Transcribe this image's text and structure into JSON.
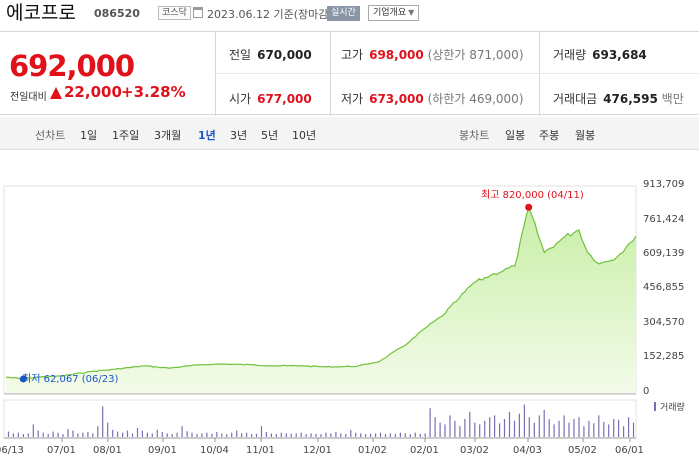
{
  "header": {
    "name": "에코프로",
    "code": "086520",
    "market": "코스닥",
    "date": "2023.06.12",
    "basis": "기준(장마감)",
    "realtime": "실시간",
    "company_info": "기업개요"
  },
  "quote": {
    "price": "692,000",
    "change_label": "전일대비",
    "change": "22,000",
    "change_pct": "+3.28%",
    "prev_label": "전일",
    "prev": "670,000",
    "open_label": "시가",
    "open": "677,000",
    "high_label": "고가",
    "high": "698,000",
    "upper_limit": "(상한가 871,000)",
    "low_label": "저가",
    "low": "673,000",
    "lower_limit": "(하한가 469,000)",
    "volume_label": "거래량",
    "volume": "693,684",
    "amount_label": "거래대금",
    "amount": "476,595",
    "amount_unit": "백만"
  },
  "tabs": {
    "line_header": "선차트",
    "periods": [
      "1일",
      "1주일",
      "3개월",
      "1년",
      "3년",
      "5년",
      "10년"
    ],
    "active_period": "1년",
    "candle_header": "봉차트",
    "candles": [
      "일봉",
      "주봉",
      "월봉"
    ]
  },
  "chart_data": {
    "type": "area",
    "y_ticks": [
      "913,709",
      "761,424",
      "609,139",
      "456,855",
      "304,570",
      "152,285",
      "0"
    ],
    "ylim": [
      0,
      913709
    ],
    "x_ticks": [
      "06/13",
      "07/01",
      "08/01",
      "09/01",
      "10/04",
      "11/01",
      "12/01",
      "01/02",
      "02/01",
      "03/02",
      "04/03",
      "05/02",
      "06/01"
    ],
    "high_annotation": "최고 820,000 (04/11)",
    "low_annotation": "최저 62,067 (06/23)",
    "volume_label": "거래량",
    "color_line": "#6fc23b",
    "color_fill_top": "#c8eea6",
    "color_volume": "#7a6fb5",
    "color_high": "#e0111b",
    "color_low": "#1a56c8",
    "price_series": [
      [
        "06/13",
        70000
      ],
      [
        "06/23",
        62067
      ],
      [
        "07/01",
        70000
      ],
      [
        "07/15",
        75000
      ],
      [
        "08/01",
        95000
      ],
      [
        "08/15",
        105000
      ],
      [
        "09/01",
        120000
      ],
      [
        "09/15",
        110000
      ],
      [
        "10/04",
        125000
      ],
      [
        "10/15",
        128000
      ],
      [
        "11/01",
        125000
      ],
      [
        "11/15",
        120000
      ],
      [
        "12/01",
        120000
      ],
      [
        "12/15",
        115000
      ],
      [
        "01/02",
        118000
      ],
      [
        "01/15",
        140000
      ],
      [
        "02/01",
        225000
      ],
      [
        "02/10",
        285000
      ],
      [
        "02/20",
        340000
      ],
      [
        "03/02",
        420000
      ],
      [
        "03/10",
        485000
      ],
      [
        "03/20",
        520000
      ],
      [
        "04/03",
        560000
      ],
      [
        "04/11",
        820000
      ],
      [
        "04/20",
        620000
      ],
      [
        "04/27",
        660000
      ],
      [
        "05/02",
        690000
      ],
      [
        "05/10",
        720000
      ],
      [
        "05/15",
        620000
      ],
      [
        "05/22",
        570000
      ],
      [
        "06/01",
        600000
      ],
      [
        "06/08",
        660000
      ],
      [
        "06/12",
        692000
      ]
    ],
    "volume_series": [
      0.15,
      0.1,
      0.12,
      0.08,
      0.1,
      0.35,
      0.18,
      0.12,
      0.09,
      0.15,
      0.12,
      0.08,
      0.22,
      0.18,
      0.1,
      0.12,
      0.14,
      0.1,
      0.3,
      0.85,
      0.4,
      0.2,
      0.15,
      0.12,
      0.18,
      0.1,
      0.25,
      0.18,
      0.12,
      0.1,
      0.2,
      0.14,
      0.1,
      0.08,
      0.12,
      0.3,
      0.16,
      0.12,
      0.08,
      0.1,
      0.12,
      0.09,
      0.14,
      0.1,
      0.08,
      0.12,
      0.18,
      0.1,
      0.12,
      0.08,
      0.09,
      0.3,
      0.14,
      0.1,
      0.08,
      0.12,
      0.1,
      0.09,
      0.1,
      0.12,
      0.08,
      0.1,
      0.09,
      0.08,
      0.12,
      0.1,
      0.14,
      0.1,
      0.08,
      0.2,
      0.12,
      0.1,
      0.08,
      0.09,
      0.1,
      0.12,
      0.08,
      0.1,
      0.09,
      0.12,
      0.1,
      0.08,
      0.12,
      0.09,
      0.1,
      0.8,
      0.55,
      0.4,
      0.35,
      0.6,
      0.45,
      0.3,
      0.5,
      0.7,
      0.4,
      0.35,
      0.45,
      0.55,
      0.6,
      0.38,
      0.5,
      0.7,
      0.45,
      0.65,
      0.9,
      0.55,
      0.4,
      0.6,
      0.75,
      0.5,
      0.35,
      0.45,
      0.6,
      0.4,
      0.5,
      0.55,
      0.3,
      0.45,
      0.38,
      0.6,
      0.42,
      0.35,
      0.5,
      0.48,
      0.3,
      0.55,
      0.4
    ]
  }
}
